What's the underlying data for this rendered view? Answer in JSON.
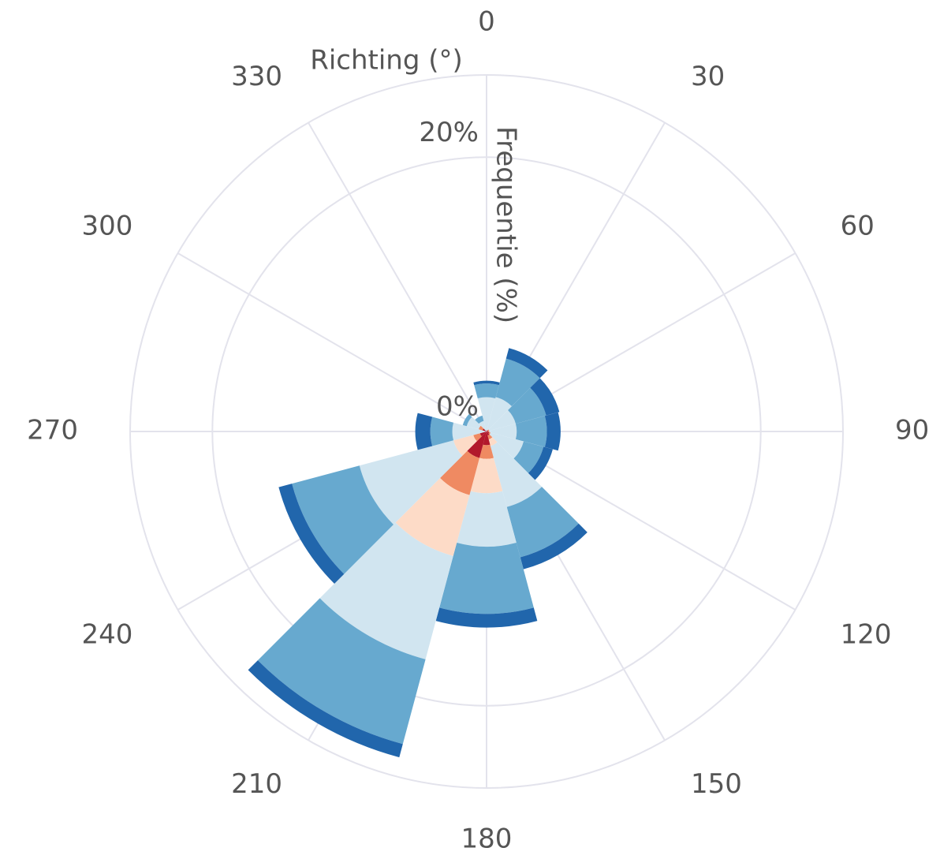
{
  "chart_data": {
    "type": "windrose",
    "x_axis_label": "Richting (°)",
    "y_axis_label": "Frequentie (%)",
    "categories": [
      "0",
      "30",
      "60",
      "90",
      "120",
      "150",
      "180",
      "210",
      "240",
      "270",
      "300",
      "330"
    ],
    "series": [
      {
        "color": "#b2182b",
        "values": [
          0,
          0.1,
          0.1,
          0.1,
          0.2,
          0.3,
          1.0,
          2.0,
          0.5,
          0,
          0.3,
          0
        ]
      },
      {
        "color": "#ef8a62",
        "values": [
          0,
          0,
          0.1,
          0.1,
          0.1,
          0.3,
          1.0,
          2.8,
          0.5,
          0,
          0.3,
          0
        ]
      },
      {
        "color": "#fddbc7",
        "values": [
          0,
          0,
          0,
          0,
          0,
          0.5,
          2.5,
          4.6,
          1.5,
          0,
          0,
          0
        ]
      },
      {
        "color": "#d1e5f0",
        "values": [
          2.5,
          2.5,
          2.0,
          2.0,
          2.5,
          4.6,
          3.9,
          7.8,
          7.1,
          2.5,
          0.9,
          0.8
        ]
      },
      {
        "color": "#67a9cf",
        "values": [
          1.0,
          2.9,
          2.3,
          2.2,
          1.5,
          3.8,
          4.9,
          6.4,
          5.1,
          1.6,
          0.3,
          0.4
        ]
      },
      {
        "color": "#2166ac",
        "values": [
          0.2,
          0.8,
          1.0,
          1.0,
          0.7,
          0.9,
          1.0,
          1.0,
          1.0,
          1.1,
          0,
          0
        ]
      }
    ],
    "ylim": [
      0,
      26
    ],
    "yticks": [
      {
        "value": 0,
        "label": "0%"
      },
      {
        "value": 20,
        "label": "20%"
      }
    ],
    "grid": true
  }
}
